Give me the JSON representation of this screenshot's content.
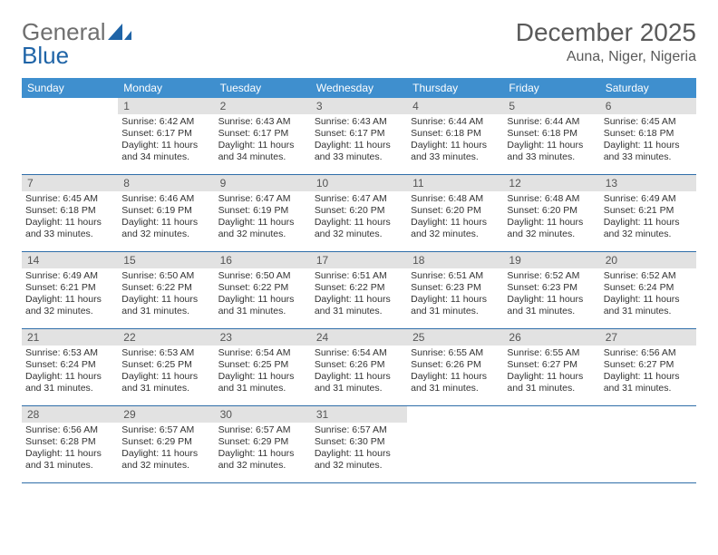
{
  "logo": {
    "text1": "General",
    "text2": "Blue"
  },
  "header": {
    "title": "December 2025",
    "subtitle": "Auna, Niger, Nigeria"
  },
  "colors": {
    "header_bg": "#3f8fce",
    "header_text": "#ffffff",
    "daynum_bg": "#e2e2e2",
    "daynum_text": "#555555",
    "border": "#2f6ea9",
    "logo_gray": "#6f6f6f",
    "logo_blue": "#1f64a7"
  },
  "weekdays": [
    "Sunday",
    "Monday",
    "Tuesday",
    "Wednesday",
    "Thursday",
    "Friday",
    "Saturday"
  ],
  "labels": {
    "sunrise": "Sunrise:",
    "sunset": "Sunset:",
    "daylight": "Daylight:"
  },
  "start_offset": 1,
  "days": {
    "1": {
      "sr": "6:42 AM",
      "ss": "6:17 PM",
      "dl": "11 hours and 34 minutes."
    },
    "2": {
      "sr": "6:43 AM",
      "ss": "6:17 PM",
      "dl": "11 hours and 34 minutes."
    },
    "3": {
      "sr": "6:43 AM",
      "ss": "6:17 PM",
      "dl": "11 hours and 33 minutes."
    },
    "4": {
      "sr": "6:44 AM",
      "ss": "6:18 PM",
      "dl": "11 hours and 33 minutes."
    },
    "5": {
      "sr": "6:44 AM",
      "ss": "6:18 PM",
      "dl": "11 hours and 33 minutes."
    },
    "6": {
      "sr": "6:45 AM",
      "ss": "6:18 PM",
      "dl": "11 hours and 33 minutes."
    },
    "7": {
      "sr": "6:45 AM",
      "ss": "6:18 PM",
      "dl": "11 hours and 33 minutes."
    },
    "8": {
      "sr": "6:46 AM",
      "ss": "6:19 PM",
      "dl": "11 hours and 32 minutes."
    },
    "9": {
      "sr": "6:47 AM",
      "ss": "6:19 PM",
      "dl": "11 hours and 32 minutes."
    },
    "10": {
      "sr": "6:47 AM",
      "ss": "6:20 PM",
      "dl": "11 hours and 32 minutes."
    },
    "11": {
      "sr": "6:48 AM",
      "ss": "6:20 PM",
      "dl": "11 hours and 32 minutes."
    },
    "12": {
      "sr": "6:48 AM",
      "ss": "6:20 PM",
      "dl": "11 hours and 32 minutes."
    },
    "13": {
      "sr": "6:49 AM",
      "ss": "6:21 PM",
      "dl": "11 hours and 32 minutes."
    },
    "14": {
      "sr": "6:49 AM",
      "ss": "6:21 PM",
      "dl": "11 hours and 32 minutes."
    },
    "15": {
      "sr": "6:50 AM",
      "ss": "6:22 PM",
      "dl": "11 hours and 31 minutes."
    },
    "16": {
      "sr": "6:50 AM",
      "ss": "6:22 PM",
      "dl": "11 hours and 31 minutes."
    },
    "17": {
      "sr": "6:51 AM",
      "ss": "6:22 PM",
      "dl": "11 hours and 31 minutes."
    },
    "18": {
      "sr": "6:51 AM",
      "ss": "6:23 PM",
      "dl": "11 hours and 31 minutes."
    },
    "19": {
      "sr": "6:52 AM",
      "ss": "6:23 PM",
      "dl": "11 hours and 31 minutes."
    },
    "20": {
      "sr": "6:52 AM",
      "ss": "6:24 PM",
      "dl": "11 hours and 31 minutes."
    },
    "21": {
      "sr": "6:53 AM",
      "ss": "6:24 PM",
      "dl": "11 hours and 31 minutes."
    },
    "22": {
      "sr": "6:53 AM",
      "ss": "6:25 PM",
      "dl": "11 hours and 31 minutes."
    },
    "23": {
      "sr": "6:54 AM",
      "ss": "6:25 PM",
      "dl": "11 hours and 31 minutes."
    },
    "24": {
      "sr": "6:54 AM",
      "ss": "6:26 PM",
      "dl": "11 hours and 31 minutes."
    },
    "25": {
      "sr": "6:55 AM",
      "ss": "6:26 PM",
      "dl": "11 hours and 31 minutes."
    },
    "26": {
      "sr": "6:55 AM",
      "ss": "6:27 PM",
      "dl": "11 hours and 31 minutes."
    },
    "27": {
      "sr": "6:56 AM",
      "ss": "6:27 PM",
      "dl": "11 hours and 31 minutes."
    },
    "28": {
      "sr": "6:56 AM",
      "ss": "6:28 PM",
      "dl": "11 hours and 31 minutes."
    },
    "29": {
      "sr": "6:57 AM",
      "ss": "6:29 PM",
      "dl": "11 hours and 32 minutes."
    },
    "30": {
      "sr": "6:57 AM",
      "ss": "6:29 PM",
      "dl": "11 hours and 32 minutes."
    },
    "31": {
      "sr": "6:57 AM",
      "ss": "6:30 PM",
      "dl": "11 hours and 32 minutes."
    }
  },
  "num_days": 31
}
